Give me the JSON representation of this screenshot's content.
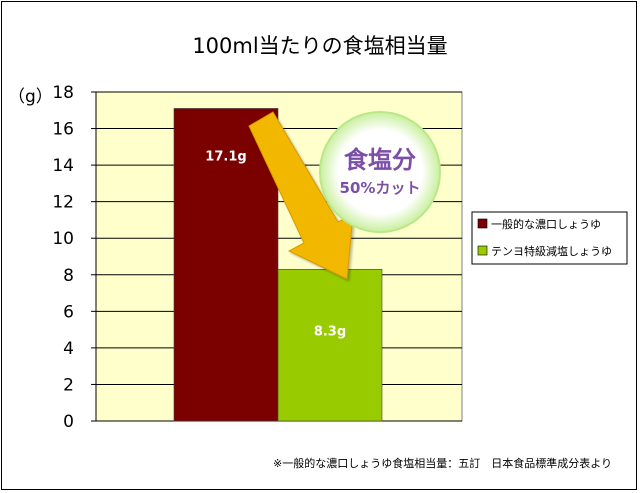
{
  "chart_data": {
    "type": "bar",
    "title": "100ml当たりの食塩相当量",
    "ylabel": "（g）",
    "ylim": [
      0,
      18
    ],
    "yticks": [
      0,
      2,
      4,
      6,
      8,
      10,
      12,
      14,
      16,
      18
    ],
    "series": [
      {
        "name": "一般的な濃口しょうゆ",
        "value": 17.1,
        "label": "17.1g",
        "color": "#7b0000"
      },
      {
        "name": "テンヨ特級減塩しょうゆ",
        "value": 8.3,
        "label": "8.3g",
        "color": "#99cc00"
      }
    ],
    "plot_background": "#ffffcc",
    "grid": true,
    "legend_position": "right",
    "annotation": {
      "main": "食塩分",
      "sub": "50%カット",
      "arrow_color": "#f2b800"
    }
  },
  "footnote": "※一般的な濃口しょうゆ食塩相当量：五訂　日本食品標準成分表より"
}
